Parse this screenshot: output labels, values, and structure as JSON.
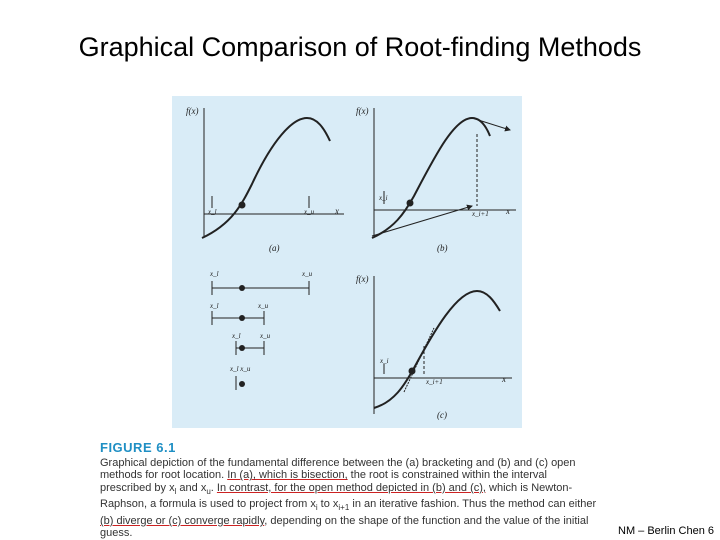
{
  "slide": {
    "title": "Graphical Comparison of Root-finding Methods",
    "footer": "NM – Berlin Chen 6"
  },
  "figure": {
    "label": "FIGURE 6.1",
    "panels": {
      "a": {
        "ylabel": "f(x)",
        "xlabel": "x",
        "tag": "(a)",
        "marks": [
          "x_l",
          "x_u"
        ]
      },
      "b": {
        "ylabel": "f(x)",
        "xlabel": "x",
        "tag": "(b)",
        "marks": [
          "x_i",
          "x_i+1"
        ]
      },
      "c": {
        "ylabel": "f(x)",
        "xlabel": "x",
        "tag": "(c)",
        "marks": [
          "x_i",
          "x_i+1"
        ]
      }
    },
    "bisection_iterations": [
      [
        "x_l",
        "x_u"
      ],
      [
        "x_l",
        "x_u"
      ],
      [
        "x_l",
        "x_u"
      ],
      [
        "x_l x_u"
      ]
    ],
    "caption_parts": [
      {
        "t": "Graphical depiction of the fundamental difference between the (a) bracketing and (b) and (c) open methods for root location. ",
        "hl": false
      },
      {
        "t": "In (a), which is bisection,",
        "hl": true
      },
      {
        "t": " the root is constrained within the interval prescribed by x",
        "hl": false
      },
      {
        "t": "l",
        "sub": true
      },
      {
        "t": " and x",
        "hl": false
      },
      {
        "t": "u",
        "sub": true
      },
      {
        "t": ". ",
        "hl": false
      },
      {
        "t": "In contrast, for the open method depicted in (b) and (c),",
        "hl": true
      },
      {
        "t": " which is Newton-Raphson, a formula is used to project from x",
        "hl": false
      },
      {
        "t": "i",
        "sub": true
      },
      {
        "t": " to x",
        "hl": false
      },
      {
        "t": "i+1",
        "sub": true
      },
      {
        "t": " in an iterative fashion. Thus the method can either ",
        "hl": false
      },
      {
        "t": "(b) diverge or (c) converge rapidly",
        "hl": true
      },
      {
        "t": ", depending on the shape of the function and the value of the initial guess.",
        "hl": false
      }
    ]
  }
}
